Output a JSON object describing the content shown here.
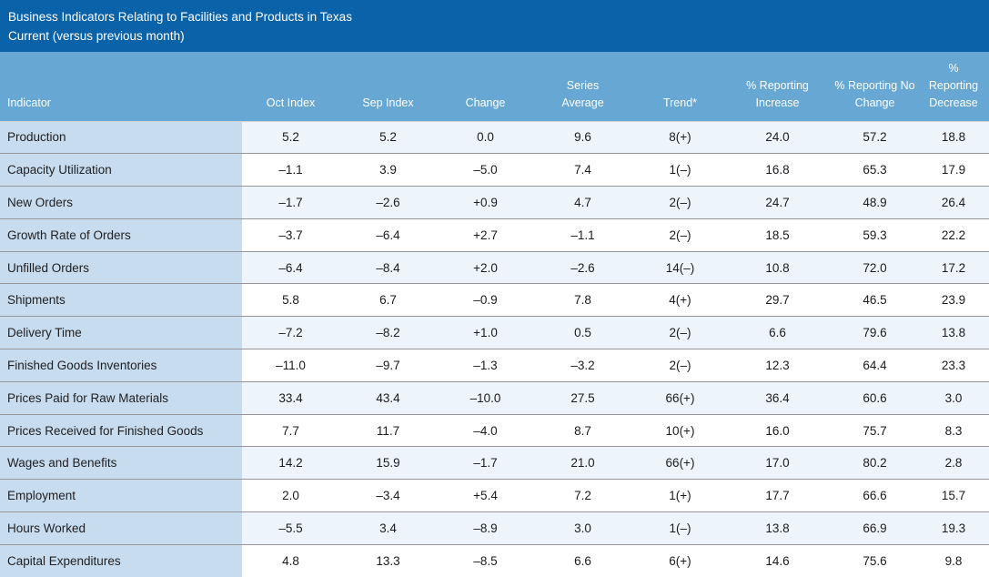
{
  "colors": {
    "title_bar": "#0a62a8",
    "header_bg": "#66a7d4",
    "indicator_bg": "#c7dcee",
    "row_tint": "#edf4fb",
    "row_white": "#ffffff",
    "divider": "#96969a",
    "header_divider": "#d3d4d6",
    "cell_text": "#1b1b1f",
    "header_text": "#ffffff"
  },
  "title": {
    "line1": "Business Indicators Relating to Facilities and Products in Texas",
    "line2": "Current (versus previous month)"
  },
  "chart_data": {
    "type": "table",
    "title": "Business Indicators Relating to Facilities and Products in Texas",
    "subtitle": "Current (versus previous month)",
    "columns": [
      "Indicator",
      "Oct Index",
      "Sep Index",
      "Change",
      "Series Average",
      "Trend*",
      "% Reporting Increase",
      "% Reporting No Change",
      "% Reporting Decrease"
    ],
    "rows": [
      [
        "Production",
        "5.2",
        "5.2",
        "0.0",
        "9.6",
        "8(+)",
        "24.0",
        "57.2",
        "18.8"
      ],
      [
        "Capacity Utilization",
        "–1.1",
        "3.9",
        "–5.0",
        "7.4",
        "1(–)",
        "16.8",
        "65.3",
        "17.9"
      ],
      [
        "New Orders",
        "–1.7",
        "–2.6",
        "+0.9",
        "4.7",
        "2(–)",
        "24.7",
        "48.9",
        "26.4"
      ],
      [
        "Growth Rate of Orders",
        "–3.7",
        "–6.4",
        "+2.7",
        "–1.1",
        "2(–)",
        "18.5",
        "59.3",
        "22.2"
      ],
      [
        "Unfilled Orders",
        "–6.4",
        "–8.4",
        "+2.0",
        "–2.6",
        "14(–)",
        "10.8",
        "72.0",
        "17.2"
      ],
      [
        "Shipments",
        "5.8",
        "6.7",
        "–0.9",
        "7.8",
        "4(+)",
        "29.7",
        "46.5",
        "23.9"
      ],
      [
        "Delivery Time",
        "–7.2",
        "–8.2",
        "+1.0",
        "0.5",
        "2(–)",
        "6.6",
        "79.6",
        "13.8"
      ],
      [
        "Finished Goods Inventories",
        "–11.0",
        "–9.7",
        "–1.3",
        "–3.2",
        "2(–)",
        "12.3",
        "64.4",
        "23.3"
      ],
      [
        "Prices Paid for Raw Materials",
        "33.4",
        "43.4",
        "–10.0",
        "27.5",
        "66(+)",
        "36.4",
        "60.6",
        "3.0"
      ],
      [
        "Prices Received for Finished Goods",
        "7.7",
        "11.7",
        "–4.0",
        "8.7",
        "10(+)",
        "16.0",
        "75.7",
        "8.3"
      ],
      [
        "Wages and Benefits",
        "14.2",
        "15.9",
        "–1.7",
        "21.0",
        "66(+)",
        "17.0",
        "80.2",
        "2.8"
      ],
      [
        "Employment",
        "2.0",
        "–3.4",
        "+5.4",
        "7.2",
        "1(+)",
        "17.7",
        "66.6",
        "15.7"
      ],
      [
        "Hours Worked",
        "–5.5",
        "3.4",
        "–8.9",
        "3.0",
        "1(–)",
        "13.8",
        "66.9",
        "19.3"
      ],
      [
        "Capital Expenditures",
        "4.8",
        "13.3",
        "–8.5",
        "6.6",
        "6(+)",
        "14.6",
        "75.6",
        "9.8"
      ]
    ]
  }
}
